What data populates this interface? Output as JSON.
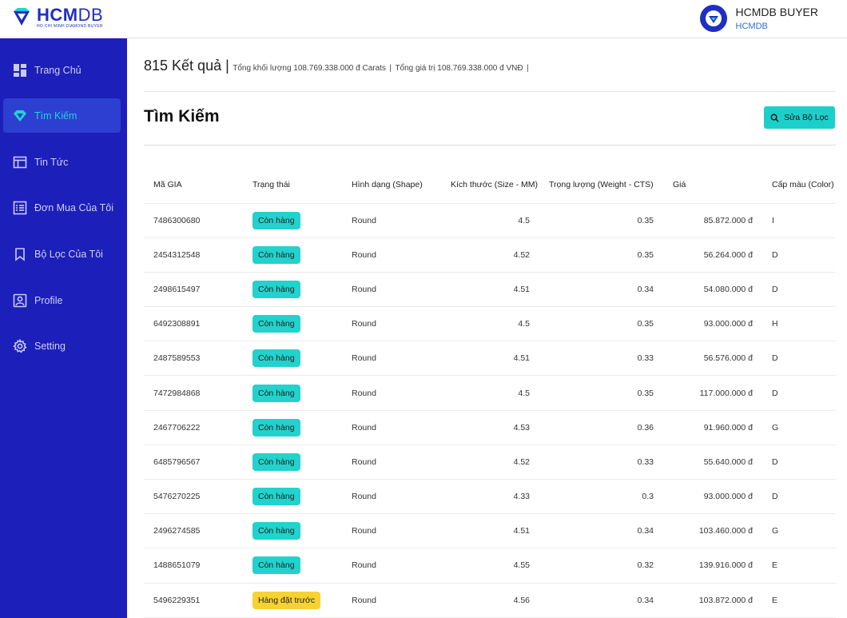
{
  "app": {
    "logo_text_bold": "HCM",
    "logo_text_thin": "DB",
    "logo_sub": "HO CHI MINH DIAMOND BUYER"
  },
  "user": {
    "name": "HCMDB BUYER",
    "sub": "HCMDB"
  },
  "sidebar": {
    "items": [
      {
        "label": "Trang Chủ",
        "icon": "dashboard-icon"
      },
      {
        "label": "Tìm Kiếm",
        "icon": "diamond-icon"
      },
      {
        "label": "Tin Tức",
        "icon": "news-icon"
      },
      {
        "label": "Đơn Mua Của Tôi",
        "icon": "order-list-icon"
      },
      {
        "label": "Bộ Lọc Của Tôi",
        "icon": "bookmark-icon"
      },
      {
        "label": "Profile",
        "icon": "profile-icon"
      },
      {
        "label": "Setting",
        "icon": "gear-icon"
      }
    ]
  },
  "summary": {
    "count": "815 Kết quả |",
    "weight": "Tổng khối lượng 108.769.338.000 đ Carats",
    "sep1": "|",
    "value": "Tổng giá trị 108.769.338.000 đ VNĐ",
    "sep2": "|"
  },
  "page_title": "Tìm Kiếm",
  "filter_button": "Sửa Bộ Lọc",
  "colors": {
    "sidebar": "#1c1fb9",
    "accent": "#1ccfca",
    "preorder": "#f6d332"
  },
  "table": {
    "headers": [
      "Mã GIA",
      "Trạng thái",
      "Hình dạng (Shape)",
      "Kích thước (Size - MM)",
      "Trọng lượng (Weight - CTS)",
      "Giá",
      "Cấp màu (Color)"
    ],
    "rows": [
      [
        "7486300680",
        "Còn hàng",
        "Round",
        "4.5",
        "0.35",
        "85.872.000 đ",
        "I"
      ],
      [
        "2454312548",
        "Còn hàng",
        "Round",
        "4.52",
        "0.35",
        "56.264.000 đ",
        "D"
      ],
      [
        "2498615497",
        "Còn hàng",
        "Round",
        "4.51",
        "0.34",
        "54.080.000 đ",
        "D"
      ],
      [
        "6492308891",
        "Còn hàng",
        "Round",
        "4.5",
        "0.35",
        "93.000.000 đ",
        "H"
      ],
      [
        "2487589553",
        "Còn hàng",
        "Round",
        "4.51",
        "0.33",
        "56.576.000 đ",
        "D"
      ],
      [
        "7472984868",
        "Còn hàng",
        "Round",
        "4.5",
        "0.35",
        "117.000.000 đ",
        "D"
      ],
      [
        "2467706222",
        "Còn hàng",
        "Round",
        "4.53",
        "0.36",
        "91.960.000 đ",
        "G"
      ],
      [
        "6485796567",
        "Còn hàng",
        "Round",
        "4.52",
        "0.33",
        "55.640.000 đ",
        "D"
      ],
      [
        "5476270225",
        "Còn hàng",
        "Round",
        "4.33",
        "0.3",
        "93.000.000 đ",
        "D"
      ],
      [
        "2496274585",
        "Còn hàng",
        "Round",
        "4.51",
        "0.34",
        "103.460.000 đ",
        "G"
      ],
      [
        "1488651079",
        "Còn hàng",
        "Round",
        "4.55",
        "0.32",
        "139.916.000 đ",
        "E"
      ],
      [
        "5496229351",
        "Hàng đặt trước",
        "Round",
        "4.56",
        "0.34",
        "103.872.000 đ",
        "E"
      ]
    ]
  }
}
